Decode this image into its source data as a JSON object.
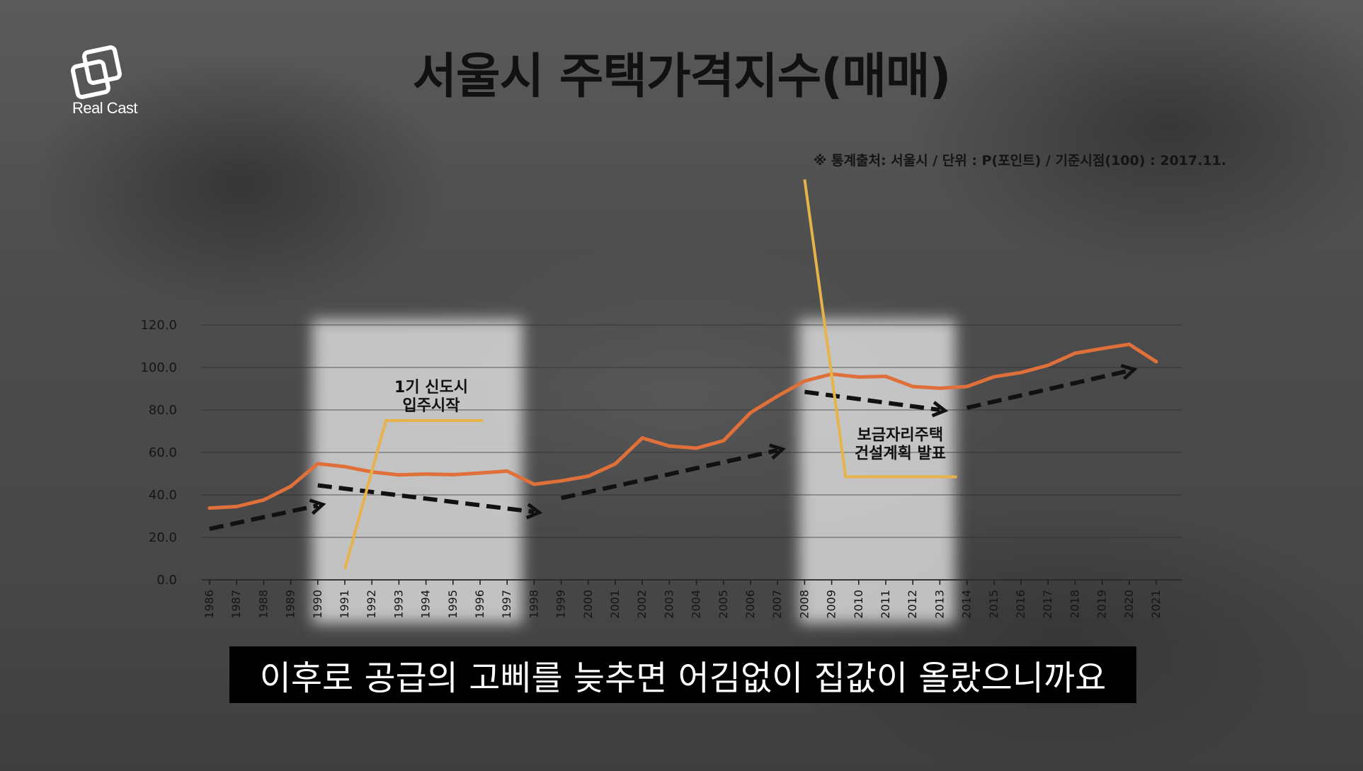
{
  "brand": {
    "logo_text": "Real Cast"
  },
  "title": "서울시 주택가격지수(매매)",
  "source_note": "※ 통계출처: 서울시 / 단위 : P(포인트) / 기준시점(100) : 2017.11.",
  "subtitle": "이후로 공급의 고삐를 늦추면 어김없이 집값이 올랐으니까요",
  "colors": {
    "line": "#e0703a",
    "callout": "#e8b24a",
    "arrow": "#111111",
    "highlight": "#f2f2f2"
  },
  "chart_data": {
    "type": "line",
    "title": "서울시 주택가격지수(매매)",
    "xlabel": "",
    "ylabel": "",
    "ylim": [
      0,
      120
    ],
    "yticks": [
      "0.0",
      "20.0",
      "40.0",
      "60.0",
      "80.0",
      "100.0",
      "120.0"
    ],
    "grid": true,
    "x": [
      "1986",
      "1987",
      "1988",
      "1989",
      "1990",
      "1991",
      "1992",
      "1993",
      "1994",
      "1995",
      "1996",
      "1997",
      "1998",
      "1999",
      "2000",
      "2001",
      "2002",
      "2003",
      "2004",
      "2005",
      "2006",
      "2007",
      "2008",
      "2009",
      "2010",
      "2011",
      "2012",
      "2013",
      "2014",
      "2015",
      "2016",
      "2017",
      "2018",
      "2019",
      "2020",
      "2021"
    ],
    "series": [
      {
        "values": [
          33.8,
          34.5,
          37.6,
          44.0,
          54.7,
          53.3,
          50.8,
          49.4,
          49.8,
          49.5,
          50.3,
          51.2,
          45.0,
          46.6,
          48.8,
          54.6,
          66.8,
          63.0,
          62.0,
          65.5,
          78.7,
          86.5,
          93.6,
          96.9,
          95.5,
          95.8,
          91.0,
          90.2,
          91.0,
          95.6,
          97.6,
          101.0,
          106.7,
          108.9,
          110.9,
          102.7
        ]
      }
    ],
    "highlight_periods": [
      [
        "1990",
        "1997"
      ],
      [
        "2008",
        "2013"
      ]
    ],
    "annotations": [
      {
        "text_lines": [
          "1기 신도시",
          "입주시작"
        ],
        "x": "1991",
        "y": 75.0
      },
      {
        "text_lines": [
          "보금자리주택",
          "건설계획 발표"
        ],
        "x": "2008",
        "y": 48.5
      }
    ],
    "trend_arrows": [
      {
        "from": [
          "1986",
          24.0
        ],
        "to": [
          "1990",
          35.0
        ]
      },
      {
        "from": [
          "1990",
          44.5
        ],
        "to": [
          "1998",
          32.0
        ]
      },
      {
        "from": [
          "1999",
          38.5
        ],
        "to": [
          "2007",
          61.0
        ]
      },
      {
        "from": [
          "2008",
          88.5
        ],
        "to": [
          "2013",
          80.0
        ]
      },
      {
        "from": [
          "2014",
          81.0
        ],
        "to": [
          "2020",
          98.5
        ]
      }
    ]
  }
}
